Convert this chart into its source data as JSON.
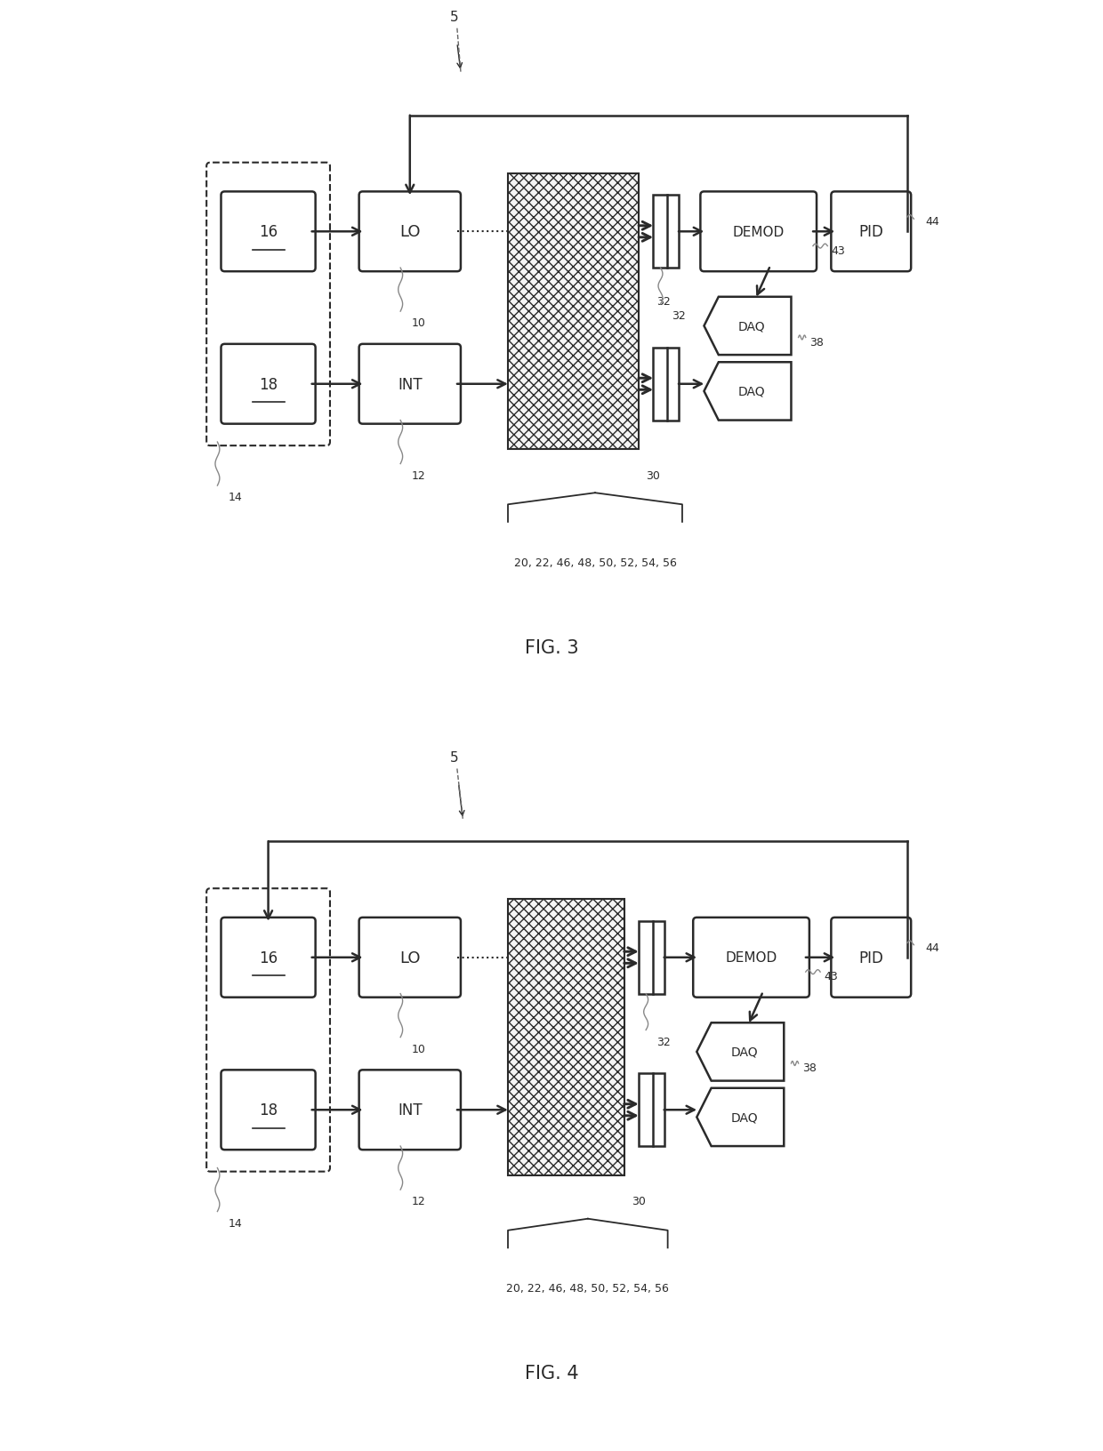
{
  "fig_width": 12.4,
  "fig_height": 16.33,
  "bg_color": "#ffffff",
  "line_color": "#2a2a2a",
  "box_fill": "#ffffff",
  "hatch_fill": "#f5f5f5",
  "fig3_title": "FIG. 3",
  "fig4_title": "FIG. 4",
  "brace_label": "20, 22, 46, 48, 50, 52, 54, 56"
}
